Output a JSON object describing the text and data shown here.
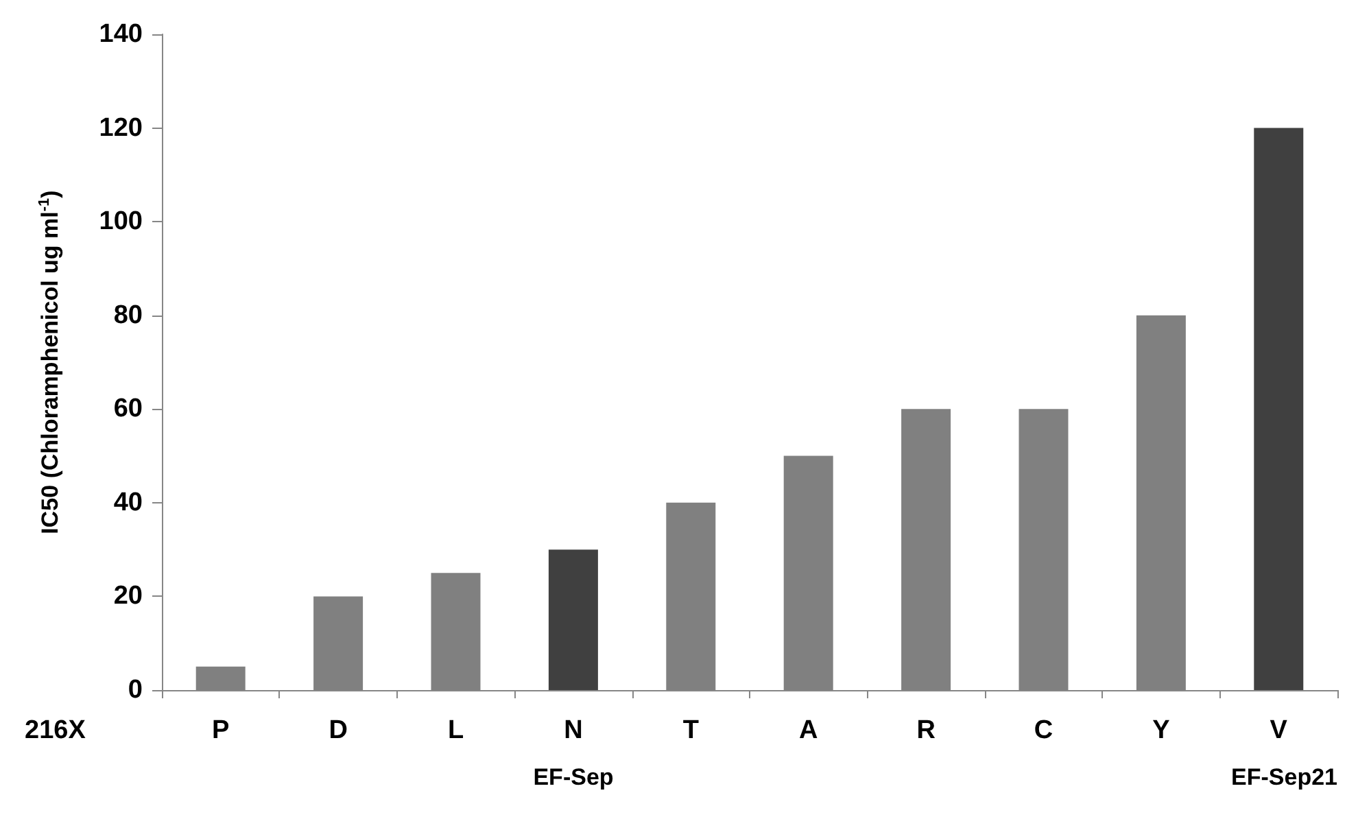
{
  "chart_data": {
    "type": "bar",
    "ylabel": "IC50 (Chloramphenicol ug ml$^{-1}$)",
    "categories": [
      "P",
      "D",
      "L",
      "N",
      "T",
      "A",
      "R",
      "C",
      "Y",
      "V"
    ],
    "values": [
      5,
      20,
      25,
      30,
      40,
      50,
      60,
      60,
      80,
      120
    ],
    "colors": [
      "#808080",
      "#808080",
      "#808080",
      "#404040",
      "#808080",
      "#808080",
      "#808080",
      "#808080",
      "#808080",
      "#404040"
    ],
    "ylim": [
      0,
      140
    ],
    "yticks": [
      0,
      20,
      40,
      60,
      80,
      100,
      120,
      140
    ],
    "grid": false,
    "annotations": [
      "216X",
      "EF-Sep",
      "EF-Sep21"
    ]
  }
}
